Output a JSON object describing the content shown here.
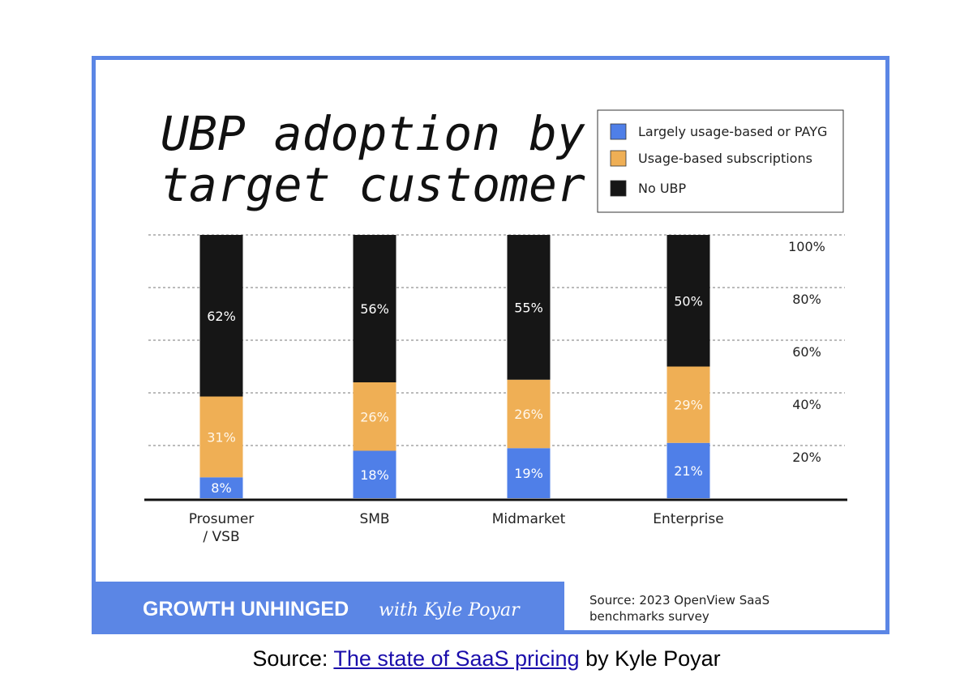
{
  "chart_data": {
    "type": "bar",
    "stacked": true,
    "title": "UBP adoption by target customer",
    "categories": [
      "Prosumer\n/ VSB",
      "SMB",
      "Midmarket",
      "Enterprise"
    ],
    "series": [
      {
        "name": "Largely usage-based or PAYG",
        "values": [
          8,
          18,
          19,
          21
        ],
        "labels": [
          "8%",
          "18%",
          "19%",
          "21%"
        ],
        "color": "#4f7fe8"
      },
      {
        "name": "Usage-based subscriptions",
        "values": [
          31,
          26,
          26,
          29
        ],
        "labels": [
          "31%",
          "26%",
          "26%",
          "29%"
        ],
        "color": "#efaf55"
      },
      {
        "name": "No UBP",
        "values": [
          62,
          56,
          55,
          50
        ],
        "labels": [
          "62%",
          "56%",
          "55%",
          "50%"
        ],
        "color": "#161616"
      }
    ],
    "yticks": [
      "20%",
      "40%",
      "60%",
      "80%",
      "100%"
    ],
    "ylim": [
      0,
      100
    ],
    "grid": true,
    "legend": "top-right"
  },
  "footer": {
    "brand": "GROWTH UNHINGED",
    "brand_suffix": "with Kyle Poyar",
    "source_line1": "Source: 2023 OpenView SaaS",
    "source_line2": "benchmarks survey",
    "brand_color": "#5b86e5"
  },
  "caption": {
    "prefix": "Source: ",
    "link": "The state of SaaS pricing",
    "suffix": " by Kyle Poyar"
  }
}
